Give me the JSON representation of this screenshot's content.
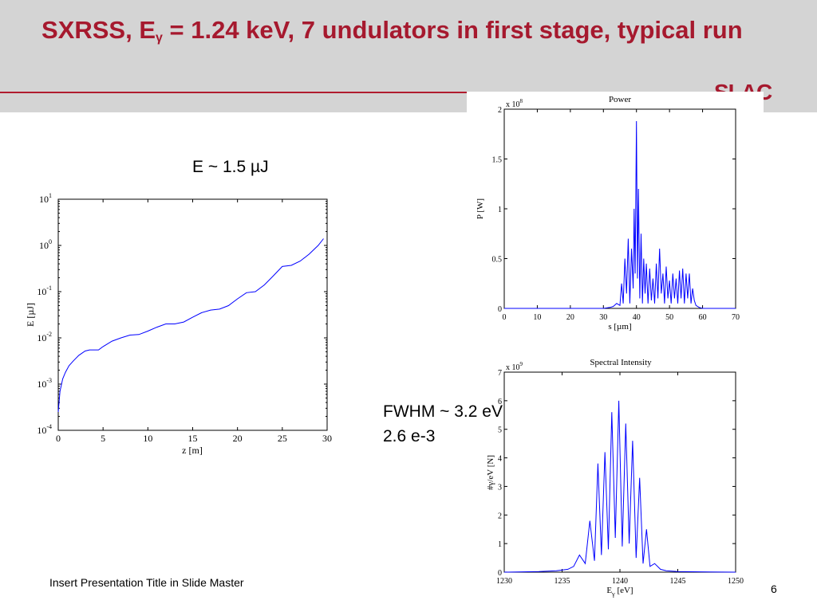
{
  "slide": {
    "title_prefix": "SXRSS, E",
    "title_sub": "γ",
    "title_rest": " = 1.24 keV, 7 undulators in first stage, typical run",
    "logo": "SLAC",
    "energy_label": "E ~ 1.5 µJ",
    "fwhm_label": "FWHM ~ 3.2 eV",
    "bandwidth_label": "2.6 e-3",
    "footer": "Insert Presentation Title in Slide Master",
    "page_number": "6",
    "accent_color": "#a6192e",
    "line_color": "#0000ff"
  },
  "chart_data": [
    {
      "type": "line",
      "title": "",
      "xlabel": "z [m]",
      "ylabel": "E [µJ]",
      "xlim": [
        0,
        30
      ],
      "ylim": [
        0.0001,
        10
      ],
      "yscale": "log",
      "xticks": [
        "0",
        "5",
        "10",
        "15",
        "20",
        "25",
        "30"
      ],
      "yticks": [
        "10^1",
        "10^0",
        "10^-1",
        "10^-2",
        "10^-3",
        "10^-4"
      ],
      "grid": false,
      "series": [
        {
          "x": [
            0.0,
            0.2,
            0.5,
            0.8,
            1.2,
            1.7,
            2.3,
            3.0,
            3.5,
            4.5,
            5.0,
            6.0,
            7.0,
            8.0,
            9.0,
            10.0,
            11.0,
            12.0,
            13.0,
            14.0,
            15.0,
            16.0,
            17.0,
            18.0,
            19.0,
            20.0,
            21.0,
            22.0,
            23.0,
            24.0,
            25.0,
            26.0,
            27.0,
            28.0,
            29.0,
            29.6
          ],
          "y": [
            0.00025,
            0.0007,
            0.0013,
            0.0018,
            0.0025,
            0.0032,
            0.0042,
            0.0052,
            0.0055,
            0.0055,
            0.0065,
            0.0085,
            0.01,
            0.0115,
            0.0118,
            0.014,
            0.017,
            0.02,
            0.02,
            0.022,
            0.028,
            0.035,
            0.04,
            0.042,
            0.05,
            0.07,
            0.095,
            0.1,
            0.14,
            0.22,
            0.35,
            0.37,
            0.46,
            0.65,
            1.0,
            1.4
          ]
        }
      ]
    },
    {
      "type": "line",
      "title": "Power",
      "xlabel": "s [µm]",
      "ylabel": "P [W]",
      "y_multiplier": "x 10^8",
      "xlim": [
        0,
        70
      ],
      "ylim": [
        0,
        2
      ],
      "xticks": [
        "0",
        "10",
        "20",
        "30",
        "40",
        "50",
        "60",
        "70"
      ],
      "yticks": [
        "0",
        "0.5",
        "1",
        "1.5",
        "2"
      ],
      "grid": false,
      "series": [
        {
          "x": [
            0.0,
            5.0,
            10.0,
            15.0,
            20.0,
            25.0,
            30.0,
            32.0,
            33.0,
            34.0,
            35.0,
            35.5,
            36.0,
            36.5,
            37.0,
            37.5,
            38.0,
            38.5,
            39.0,
            39.3,
            39.6,
            40.0,
            40.3,
            40.6,
            41.0,
            41.4,
            41.8,
            42.2,
            42.6,
            43.0,
            43.5,
            44.0,
            44.5,
            45.0,
            45.5,
            46.0,
            46.5,
            47.0,
            47.5,
            48.0,
            48.5,
            49.0,
            49.5,
            50.0,
            50.5,
            51.0,
            51.5,
            52.0,
            52.5,
            53.0,
            53.5,
            54.0,
            54.5,
            55.0,
            55.5,
            56.0,
            56.5,
            57.0,
            57.5,
            58.0,
            59.0,
            60.0,
            65.0,
            70.0
          ],
          "y": [
            0.0,
            0.0,
            0.0,
            0.0,
            0.0,
            0.0,
            0.0,
            0.01,
            0.02,
            0.05,
            0.03,
            0.25,
            0.05,
            0.5,
            0.15,
            0.7,
            0.05,
            0.6,
            0.2,
            1.0,
            0.35,
            1.88,
            0.3,
            1.2,
            0.1,
            0.75,
            0.05,
            0.5,
            0.15,
            0.45,
            0.05,
            0.4,
            0.08,
            0.3,
            0.05,
            0.45,
            0.1,
            0.6,
            0.15,
            0.35,
            0.05,
            0.42,
            0.1,
            0.28,
            0.05,
            0.35,
            0.1,
            0.3,
            0.05,
            0.38,
            0.1,
            0.4,
            0.05,
            0.35,
            0.1,
            0.35,
            0.05,
            0.2,
            0.08,
            0.03,
            0.01,
            0.0,
            0.0,
            0.0
          ]
        }
      ]
    },
    {
      "type": "line",
      "title": "Spectral Intensity",
      "xlabel": "Eγ [eV]",
      "ylabel": "#γ/eV [N]",
      "y_multiplier": "x 10^9",
      "xlim": [
        1230,
        1250
      ],
      "ylim": [
        0,
        7
      ],
      "xticks": [
        "1230",
        "1235",
        "1240",
        "1245",
        "1250"
      ],
      "yticks": [
        "0",
        "1",
        "2",
        "3",
        "4",
        "5",
        "6",
        "7"
      ],
      "grid": false,
      "series": [
        {
          "x": [
            1230.0,
            1233.0,
            1234.5,
            1235.5,
            1236.0,
            1236.5,
            1237.0,
            1237.4,
            1237.8,
            1238.1,
            1238.4,
            1238.7,
            1239.0,
            1239.3,
            1239.6,
            1239.9,
            1240.2,
            1240.5,
            1240.8,
            1241.1,
            1241.4,
            1241.7,
            1242.0,
            1242.3,
            1242.6,
            1243.0,
            1243.5,
            1244.0,
            1245.0,
            1247.0,
            1250.0
          ],
          "y": [
            0.0,
            0.02,
            0.05,
            0.1,
            0.2,
            0.6,
            0.3,
            1.8,
            0.4,
            3.8,
            0.6,
            4.2,
            0.8,
            5.6,
            1.2,
            6.0,
            0.9,
            5.2,
            1.0,
            4.6,
            0.5,
            3.3,
            0.3,
            1.5,
            0.2,
            0.3,
            0.1,
            0.05,
            0.02,
            0.01,
            0.0
          ]
        }
      ]
    }
  ]
}
